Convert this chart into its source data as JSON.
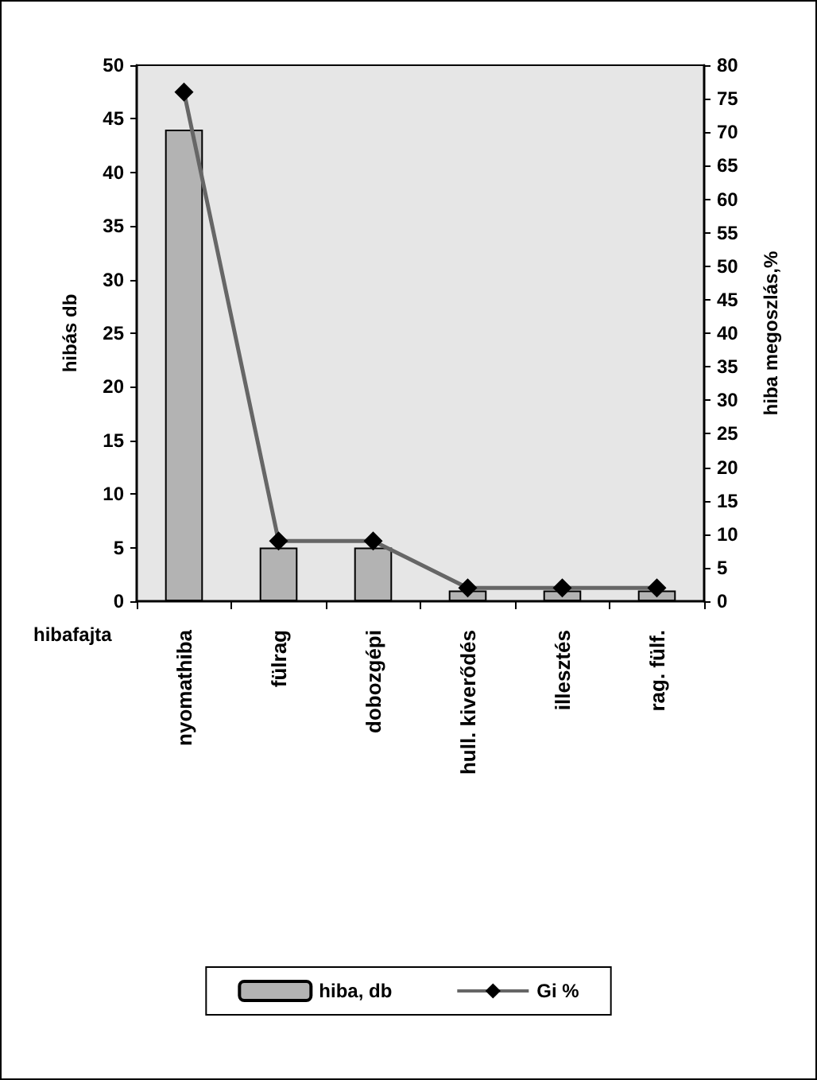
{
  "chart_data": {
    "type": "bar",
    "xlabel": "hibafajta",
    "ylabel": "hibás db",
    "y2label": "hiba megoszlás,%",
    "categories": [
      "nyomathiba",
      "fülrag",
      "dobozgépi",
      "hull. kiverődés",
      "illesztés",
      "rag. fülf."
    ],
    "series": [
      {
        "name": "hiba, db",
        "color": "#b3b3b3",
        "values": [
          44,
          5,
          5,
          1,
          1,
          1
        ]
      },
      {
        "name": "Gi %",
        "type": "line",
        "axis": "y2",
        "color": "#666666",
        "marker": "diamond",
        "values": [
          76,
          9,
          9,
          2,
          2,
          2
        ]
      }
    ],
    "ylim": [
      0,
      50
    ],
    "yticks": [
      0,
      5,
      10,
      15,
      20,
      25,
      30,
      35,
      40,
      45,
      50
    ],
    "y2lim": [
      0,
      80
    ],
    "y2ticks": [
      0,
      5,
      10,
      15,
      20,
      25,
      30,
      35,
      40,
      45,
      50,
      55,
      60,
      65,
      70,
      75,
      80
    ],
    "grid": false,
    "legend": "bottom"
  }
}
